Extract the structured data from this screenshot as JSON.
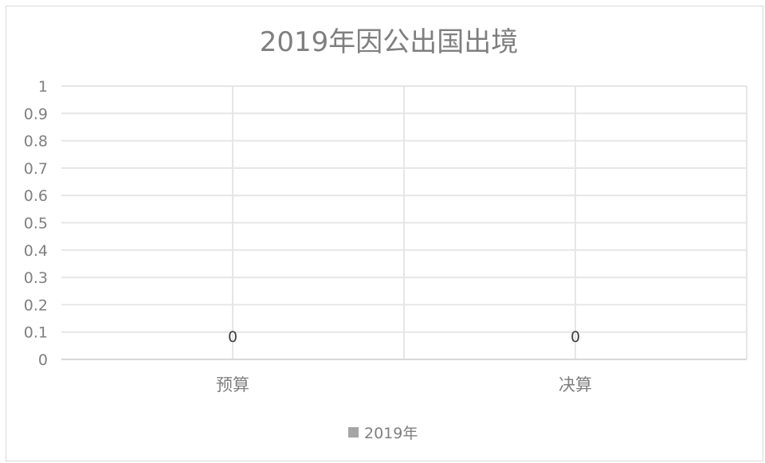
{
  "chart_data": {
    "type": "bar",
    "title": "2019年因公出国出境",
    "categories": [
      "预算",
      "决算"
    ],
    "series": [
      {
        "name": "2019年",
        "values": [
          0,
          0
        ],
        "color": "#a5a5a5"
      }
    ],
    "data_labels": [
      "0",
      "0"
    ],
    "y_ticks": [
      "0",
      "0.1",
      "0.2",
      "0.3",
      "0.4",
      "0.5",
      "0.6",
      "0.7",
      "0.8",
      "0.9",
      "1"
    ],
    "ylim": [
      0,
      1
    ],
    "xlabel": "",
    "ylabel": "",
    "grid": true,
    "legend": "bottom",
    "grid_color": "#e6e6e6",
    "axis_color": "#d9d9d9"
  }
}
